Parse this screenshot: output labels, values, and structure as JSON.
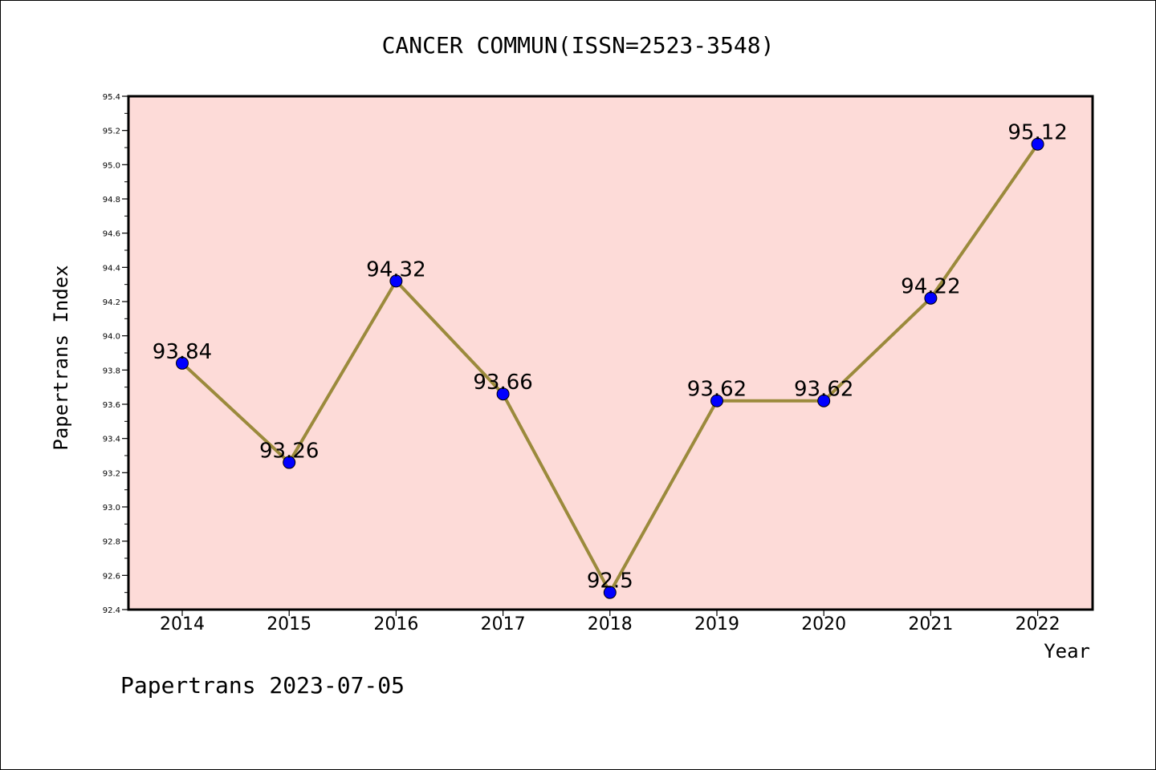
{
  "chart_data": {
    "type": "line",
    "title": "CANCER COMMUN(ISSN=2523-3548)",
    "xlabel": "Year",
    "ylabel": "Papertrans Index",
    "categories": [
      "2014",
      "2015",
      "2016",
      "2017",
      "2018",
      "2019",
      "2020",
      "2021",
      "2022"
    ],
    "values": [
      93.84,
      93.26,
      94.32,
      93.66,
      92.5,
      93.62,
      93.62,
      94.22,
      95.12
    ],
    "data_labels": [
      "93.84",
      "93.26",
      "94.32",
      "93.66",
      "92.5",
      "93.62",
      "93.62",
      "94.22",
      "95.12"
    ],
    "ylim": [
      92.4,
      95.4
    ],
    "yticks": [
      "92.4",
      "92.6",
      "92.8",
      "93.0",
      "93.2",
      "93.4",
      "93.6",
      "93.8",
      "94.0",
      "94.2",
      "94.4",
      "94.6",
      "94.8",
      "95.0",
      "95.2",
      "95.4"
    ],
    "grid": false,
    "colors": {
      "plot_background": "#fddbd8",
      "line": "#9b8a3c",
      "marker": "#0000ff"
    }
  },
  "footer": "Papertrans 2023-07-05"
}
